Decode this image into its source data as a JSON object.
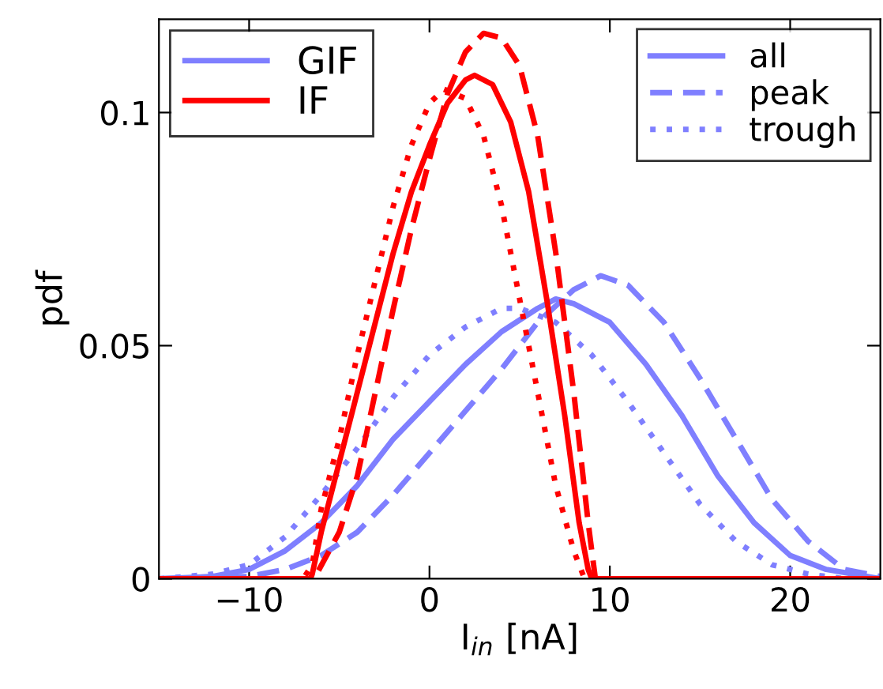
{
  "chart_data": {
    "type": "line",
    "xlabel": "I$_{in}$ [nA]",
    "ylabel": "pdf",
    "xlim": [
      -15,
      25
    ],
    "xticks": [
      -10,
      0,
      10,
      20
    ],
    "ylim": [
      0,
      0.12
    ],
    "yticks": [
      0,
      0.05,
      0.1
    ],
    "grid": false,
    "legend": "top left",
    "annotations": [
      "all"
    ],
    "series": [
      {
        "name": "GIF",
        "color": "#7f7fff",
        "line_style": "solid",
        "x": [
          -15,
          -12,
          -10,
          -8,
          -6,
          -4,
          -2,
          0,
          2,
          4,
          6,
          7,
          8,
          10,
          12,
          14,
          16,
          18,
          20,
          22,
          25
        ],
        "values": [
          0,
          0.0005,
          0.002,
          0.006,
          0.012,
          0.02,
          0.03,
          0.038,
          0.046,
          0.053,
          0.058,
          0.06,
          0.059,
          0.055,
          0.046,
          0.035,
          0.022,
          0.012,
          0.005,
          0.002,
          0
        ]
      },
      {
        "name": "peak",
        "color": "#7f7fff",
        "line_style": "dashed",
        "x": [
          -15,
          -10,
          -8,
          -6,
          -4,
          -2,
          0,
          2,
          4,
          6,
          8,
          9.5,
          11,
          13,
          15,
          17,
          19,
          21,
          23,
          25
        ],
        "values": [
          0,
          0.0005,
          0.002,
          0.005,
          0.01,
          0.018,
          0.027,
          0.036,
          0.045,
          0.055,
          0.062,
          0.065,
          0.063,
          0.055,
          0.043,
          0.03,
          0.017,
          0.008,
          0.002,
          0.0005
        ]
      },
      {
        "name": "trough",
        "color": "#7f7fff",
        "line_style": "dotted",
        "x": [
          -15,
          -12,
          -10,
          -8,
          -6,
          -4,
          -2,
          0,
          2,
          4,
          5,
          7,
          9,
          11,
          13,
          15,
          17,
          19,
          21,
          23,
          25
        ],
        "values": [
          0,
          0.001,
          0.003,
          0.009,
          0.018,
          0.028,
          0.039,
          0.048,
          0.054,
          0.058,
          0.058,
          0.055,
          0.048,
          0.038,
          0.027,
          0.016,
          0.008,
          0.003,
          0.001,
          0,
          0
        ]
      },
      {
        "name": "IF",
        "color": "#ff0000",
        "line_style": "solid",
        "x": [
          -15,
          -6.6,
          -6.5,
          -6,
          -5,
          -4,
          -3,
          -2,
          -1,
          0,
          1,
          2,
          2.5,
          3.5,
          4.5,
          5.5,
          6.5,
          7.5,
          8.3,
          8.8,
          9,
          25
        ],
        "values": [
          0,
          0,
          0.001,
          0.01,
          0.025,
          0.04,
          0.055,
          0.07,
          0.083,
          0.093,
          0.102,
          0.107,
          0.108,
          0.106,
          0.098,
          0.083,
          0.06,
          0.035,
          0.012,
          0.002,
          0,
          0
        ]
      },
      {
        "color": "#ff0000",
        "line_style": "dashed",
        "x": [
          -15,
          -6.4,
          -5,
          -4,
          -3,
          -2,
          -1,
          0,
          1,
          2,
          3,
          4,
          5,
          6,
          7,
          8,
          8.8,
          9.2,
          25
        ],
        "values": [
          0,
          0,
          0.01,
          0.022,
          0.04,
          0.058,
          0.075,
          0.09,
          0.104,
          0.113,
          0.117,
          0.116,
          0.11,
          0.095,
          0.07,
          0.04,
          0.012,
          0,
          0
        ]
      },
      {
        "color": "#ff0000",
        "line_style": "dotted",
        "x": [
          -15,
          -7,
          -6.5,
          -6,
          -5,
          -4,
          -3,
          -2,
          -1,
          0,
          0.8,
          2,
          3,
          4,
          5,
          6,
          7,
          8,
          8.6,
          25
        ],
        "values": [
          0,
          0,
          0.003,
          0.015,
          0.03,
          0.048,
          0.064,
          0.08,
          0.093,
          0.102,
          0.105,
          0.103,
          0.095,
          0.08,
          0.06,
          0.04,
          0.02,
          0.006,
          0,
          0
        ]
      }
    ]
  }
}
